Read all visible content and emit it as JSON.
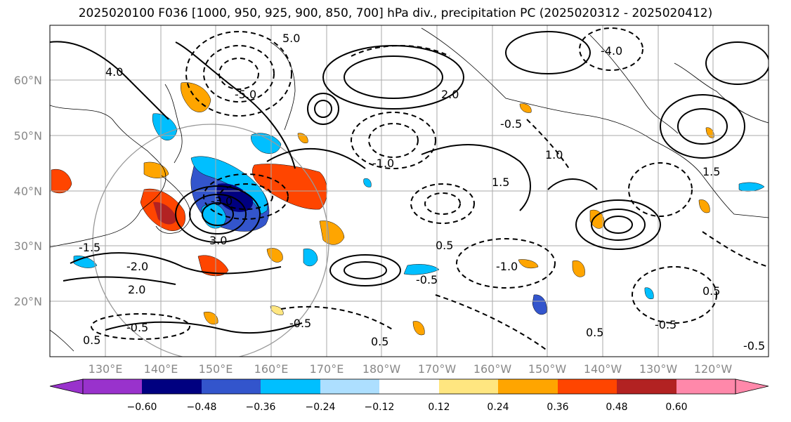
{
  "title": "2025020100 F036 [1000, 950, 925, 900, 850, 700] hPa div., precipitation PC (2025020312 - 2025020412)",
  "lat_ticks": [
    "60°N",
    "50°N",
    "40°N",
    "30°N",
    "20°N"
  ],
  "lon_ticks": [
    "130°E",
    "140°E",
    "150°E",
    "160°E",
    "170°E",
    "180°W",
    "170°W",
    "160°W",
    "150°W",
    "140°W",
    "130°W",
    "120°W"
  ],
  "colorbar": {
    "colors": [
      "#9932CC",
      "#000080",
      "#3355CC",
      "#00BFFF",
      "#ADDFFF",
      "#FFFFFF",
      "#FFE680",
      "#FFA500",
      "#FF4500",
      "#B22222",
      "#FF88AA"
    ],
    "labels": [
      "−0.60",
      "−0.48",
      "−0.36",
      "−0.24",
      "−0.12",
      "0.12",
      "0.24",
      "0.36",
      "0.48",
      "0.60"
    ]
  },
  "contour_labels": [
    "-3.0",
    "-2.0",
    "-1.5",
    "-1.0",
    "-0.5",
    "-0.5",
    "-0.5",
    "-0.5",
    "0.5",
    "0.5",
    "0.5",
    "1.0",
    "1.5",
    "2.0",
    "3.0",
    "4.0",
    "5.0",
    "-5.0",
    "-4.0",
    "1.5",
    "-0.5",
    "0.5",
    "-1.0",
    "2.0",
    "0.5",
    "-0.5"
  ],
  "icons": {
    "map": "map-icon",
    "colorbar_arrow_left": "triangle-left-icon",
    "colorbar_arrow_right": "triangle-right-icon"
  }
}
